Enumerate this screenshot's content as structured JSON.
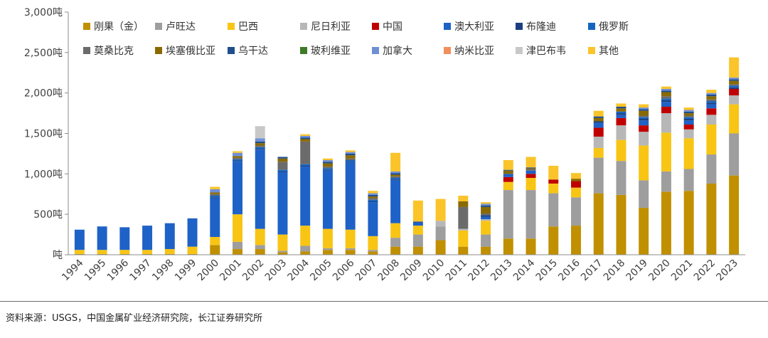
{
  "chart_data": {
    "type": "bar",
    "stacked": true,
    "categories": [
      "1994",
      "1995",
      "1996",
      "1997",
      "1998",
      "1999",
      "2000",
      "2001",
      "2002",
      "2003",
      "2004",
      "2005",
      "2006",
      "2007",
      "2008",
      "2009",
      "2010",
      "2011",
      "2012",
      "2013",
      "2014",
      "2015",
      "2016",
      "2017",
      "2018",
      "2019",
      "2020",
      "2021",
      "2022",
      "2023"
    ],
    "ylim": [
      0,
      3000
    ],
    "yticks": [
      {
        "value": 0,
        "label": "吨"
      },
      {
        "value": 500,
        "label": "500吨"
      },
      {
        "value": 1000,
        "label": "1,000吨"
      },
      {
        "value": 1500,
        "label": "1,500吨"
      },
      {
        "value": 2000,
        "label": "2,000吨"
      },
      {
        "value": 2500,
        "label": "2,500吨"
      },
      {
        "value": 3000,
        "label": "3,000吨"
      }
    ],
    "grid": false,
    "legend_position": "top-left",
    "series": [
      {
        "name": "刚果（金）",
        "color": "#C09000",
        "values": [
          10,
          10,
          10,
          10,
          10,
          10,
          120,
          70,
          70,
          30,
          40,
          60,
          60,
          40,
          100,
          100,
          180,
          100,
          100,
          200,
          200,
          350,
          360,
          760,
          740,
          580,
          780,
          790,
          880,
          980
        ]
      },
      {
        "name": "卢旺达",
        "color": "#9E9E9E",
        "values": [
          0,
          0,
          0,
          0,
          0,
          0,
          0,
          90,
          50,
          20,
          70,
          20,
          20,
          20,
          110,
          150,
          170,
          0,
          150,
          600,
          600,
          410,
          350,
          440,
          420,
          340,
          250,
          270,
          360,
          520
        ]
      },
      {
        "name": "巴西",
        "color": "#F8C515",
        "values": [
          50,
          50,
          50,
          50,
          60,
          90,
          100,
          340,
          200,
          200,
          250,
          240,
          230,
          170,
          180,
          110,
          0,
          200,
          170,
          100,
          150,
          120,
          120,
          120,
          260,
          430,
          480,
          380,
          370,
          360
        ]
      },
      {
        "name": "尼日利亚",
        "color": "#B7B7B7",
        "values": [
          0,
          0,
          0,
          0,
          0,
          0,
          0,
          0,
          0,
          0,
          0,
          0,
          0,
          0,
          0,
          0,
          70,
          20,
          20,
          0,
          0,
          0,
          0,
          140,
          180,
          170,
          240,
          110,
          120,
          110
        ]
      },
      {
        "name": "中国",
        "color": "#C00000",
        "values": [
          0,
          0,
          0,
          0,
          0,
          0,
          0,
          0,
          0,
          0,
          0,
          0,
          0,
          0,
          0,
          0,
          0,
          0,
          0,
          60,
          50,
          50,
          80,
          110,
          90,
          80,
          80,
          60,
          80,
          80
        ]
      },
      {
        "name": "澳大利亚",
        "color": "#1F62C7",
        "values": [
          250,
          290,
          280,
          300,
          320,
          350,
          480,
          650,
          980,
          770,
          730,
          720,
          830,
          420,
          530,
          40,
          0,
          0,
          30,
          40,
          40,
          0,
          0,
          60,
          40,
          60,
          60,
          50,
          50,
          0
        ]
      },
      {
        "name": "布隆迪",
        "color": "#1C3E80",
        "values": [
          0,
          0,
          0,
          0,
          0,
          0,
          10,
          10,
          10,
          10,
          10,
          10,
          10,
          10,
          10,
          0,
          0,
          0,
          20,
          0,
          0,
          0,
          0,
          20,
          20,
          20,
          20,
          20,
          20,
          20
        ]
      },
      {
        "name": "俄罗斯",
        "color": "#1565C0",
        "values": [
          0,
          0,
          0,
          0,
          0,
          0,
          20,
          20,
          20,
          20,
          20,
          20,
          20,
          20,
          20,
          0,
          0,
          0,
          0,
          0,
          0,
          0,
          0,
          0,
          20,
          20,
          20,
          20,
          20,
          20
        ]
      },
      {
        "name": "莫桑比克",
        "color": "#6B6B6B",
        "values": [
          0,
          0,
          0,
          0,
          0,
          0,
          20,
          20,
          20,
          100,
          280,
          20,
          20,
          20,
          20,
          0,
          0,
          270,
          20,
          0,
          20,
          0,
          0,
          0,
          0,
          20,
          30,
          20,
          20,
          20
        ]
      },
      {
        "name": "埃塞俄比亚",
        "color": "#8A6A00",
        "values": [
          0,
          0,
          0,
          0,
          0,
          0,
          20,
          20,
          30,
          40,
          30,
          40,
          40,
          20,
          20,
          0,
          0,
          70,
          80,
          40,
          10,
          0,
          30,
          40,
          40,
          60,
          50,
          30,
          40,
          40
        ]
      },
      {
        "name": "乌干达",
        "color": "#1E4E8C",
        "values": [
          0,
          0,
          0,
          0,
          0,
          0,
          0,
          0,
          20,
          20,
          20,
          20,
          20,
          20,
          20,
          10,
          0,
          0,
          20,
          10,
          10,
          0,
          0,
          20,
          20,
          20,
          20,
          20,
          20,
          20
        ]
      },
      {
        "name": "玻利维亚",
        "color": "#3E7B27",
        "values": [
          0,
          0,
          0,
          0,
          0,
          0,
          0,
          0,
          0,
          0,
          0,
          0,
          0,
          0,
          0,
          0,
          0,
          0,
          0,
          0,
          0,
          0,
          0,
          0,
          0,
          0,
          0,
          0,
          0,
          0
        ]
      },
      {
        "name": "加拿大",
        "color": "#6F8FD6",
        "values": [
          0,
          0,
          0,
          0,
          0,
          0,
          40,
          40,
          40,
          0,
          20,
          20,
          20,
          20,
          20,
          0,
          0,
          0,
          20,
          0,
          0,
          0,
          0,
          0,
          0,
          20,
          20,
          20,
          20,
          20
        ]
      },
      {
        "name": "纳米比亚",
        "color": "#F28E5C",
        "values": [
          0,
          0,
          0,
          0,
          0,
          0,
          0,
          0,
          0,
          0,
          0,
          0,
          0,
          0,
          0,
          0,
          0,
          0,
          0,
          0,
          0,
          0,
          0,
          0,
          0,
          0,
          0,
          0,
          0,
          0
        ]
      },
      {
        "name": "津巴布韦",
        "color": "#C8C8C8",
        "values": [
          0,
          0,
          0,
          0,
          0,
          0,
          0,
          0,
          150,
          0,
          0,
          0,
          0,
          0,
          0,
          0,
          0,
          0,
          0,
          0,
          0,
          0,
          0,
          0,
          0,
          0,
          0,
          0,
          0,
          0
        ]
      },
      {
        "name": "其他",
        "color": "#FAC42A",
        "values": [
          0,
          0,
          0,
          0,
          0,
          0,
          30,
          20,
          0,
          0,
          20,
          20,
          20,
          30,
          230,
          260,
          270,
          70,
          20,
          120,
          130,
          170,
          70,
          70,
          40,
          40,
          30,
          30,
          40,
          250
        ]
      }
    ]
  },
  "source_text": "资料来源：USGS，中国金属矿业经济研究院，长江证券研究所"
}
